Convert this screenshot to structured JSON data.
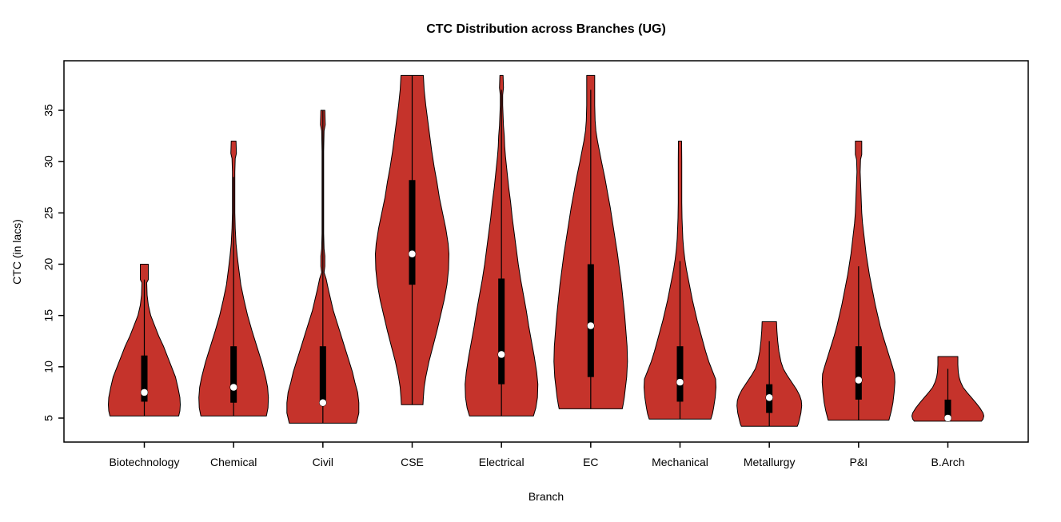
{
  "title": "CTC Distribution across Branches (UG)",
  "chart_data": {
    "type": "violin",
    "title": "CTC Distribution across Branches (UG)",
    "xlabel": "Branch",
    "ylabel": "CTC (in lacs)",
    "yticks": [
      5,
      10,
      15,
      20,
      25,
      30,
      35
    ],
    "ylim": [
      3.5,
      39.5
    ],
    "grid": false,
    "legend": "none",
    "categories": [
      "Biotechnology",
      "Chemical",
      "Civil",
      "CSE",
      "Electrical",
      "EC",
      "Mechanical",
      "Metallurgy",
      "P&I",
      "B.Arch"
    ],
    "series": [
      {
        "branch": "Biotechnology",
        "min": 5.2,
        "max": 20,
        "q1": 6.6,
        "q3": 11.1,
        "median": 7.5,
        "line": [
          5.2,
          18.5
        ],
        "profile": [
          [
            20,
            5
          ],
          [
            18.5,
            5
          ],
          [
            18.2,
            3
          ],
          [
            17,
            3.5
          ],
          [
            16,
            5
          ],
          [
            15,
            8
          ],
          [
            14,
            13
          ],
          [
            13,
            18
          ],
          [
            12,
            24
          ],
          [
            11,
            29
          ],
          [
            10,
            34
          ],
          [
            9,
            39
          ],
          [
            8,
            42
          ],
          [
            7,
            44.5
          ],
          [
            6.3,
            45
          ],
          [
            5.7,
            44.5
          ],
          [
            5.2,
            43
          ]
        ]
      },
      {
        "branch": "Chemical",
        "min": 5.2,
        "max": 32,
        "q1": 6.5,
        "q3": 12,
        "median": 8,
        "line": [
          5.2,
          28.5
        ],
        "profile": [
          [
            32,
            3
          ],
          [
            30.8,
            3.5
          ],
          [
            30.3,
            2
          ],
          [
            29,
            1.5
          ],
          [
            27,
            1.5
          ],
          [
            25,
            1.5
          ],
          [
            23.5,
            2
          ],
          [
            22,
            3
          ],
          [
            20.8,
            4.5
          ],
          [
            19.5,
            6.5
          ],
          [
            18,
            9
          ],
          [
            16.5,
            13
          ],
          [
            15,
            17.5
          ],
          [
            13.5,
            23
          ],
          [
            12,
            29
          ],
          [
            10.5,
            35
          ],
          [
            9,
            40
          ],
          [
            8,
            42.5
          ],
          [
            7,
            43.5
          ],
          [
            6,
            43
          ],
          [
            5.2,
            41
          ]
        ]
      },
      {
        "branch": "Civil",
        "min": 4.5,
        "max": 35,
        "q1": 6.3,
        "q3": 12,
        "median": 6.5,
        "line": [
          4.5,
          35
        ],
        "profile": [
          [
            35,
            2.5
          ],
          [
            33.6,
            3
          ],
          [
            33,
            1.5
          ],
          [
            31,
            1
          ],
          [
            29,
            1
          ],
          [
            27,
            1
          ],
          [
            25,
            1
          ],
          [
            23,
            1
          ],
          [
            21.5,
            1.5
          ],
          [
            20.8,
            2.5
          ],
          [
            19.8,
            2.5
          ],
          [
            19.2,
            1.5
          ],
          [
            18.6,
            4
          ],
          [
            17.5,
            7
          ],
          [
            16.5,
            10
          ],
          [
            15.5,
            13
          ],
          [
            14.5,
            17
          ],
          [
            13.5,
            21
          ],
          [
            12.5,
            25
          ],
          [
            11.5,
            29
          ],
          [
            10.5,
            33
          ],
          [
            9.5,
            37
          ],
          [
            8.5,
            40
          ],
          [
            7.5,
            43.5
          ],
          [
            6.5,
            45
          ],
          [
            5.5,
            45
          ],
          [
            4.5,
            42
          ]
        ]
      },
      {
        "branch": "CSE",
        "min": 6.3,
        "max": 38,
        "q1": 18,
        "q3": 28.2,
        "median": 21,
        "line": [
          6.3,
          38.4
        ],
        "profile": [
          [
            38.4,
            14
          ],
          [
            37,
            15
          ],
          [
            35.5,
            17
          ],
          [
            34,
            19.5
          ],
          [
            32.5,
            22
          ],
          [
            31,
            24.5
          ],
          [
            29.5,
            27.5
          ],
          [
            28,
            31
          ],
          [
            26.5,
            34
          ],
          [
            25,
            38
          ],
          [
            23.5,
            42
          ],
          [
            22,
            45
          ],
          [
            21,
            46
          ],
          [
            19.5,
            45.5
          ],
          [
            18,
            43.5
          ],
          [
            16.5,
            40
          ],
          [
            15,
            35.5
          ],
          [
            13.5,
            31
          ],
          [
            12,
            26
          ],
          [
            10.5,
            21
          ],
          [
            9,
            17
          ],
          [
            8,
            15
          ],
          [
            7,
            14
          ],
          [
            6.3,
            13.5
          ]
        ]
      },
      {
        "branch": "Electrical",
        "min": 5.2,
        "max": 38,
        "q1": 8.3,
        "q3": 18.6,
        "median": 11.2,
        "line": [
          5.2,
          37
        ],
        "profile": [
          [
            38.4,
            2
          ],
          [
            37.2,
            2.5
          ],
          [
            36.5,
            1.5
          ],
          [
            35.5,
            1.5
          ],
          [
            34.5,
            2
          ],
          [
            33.5,
            2.5
          ],
          [
            32.5,
            3.5
          ],
          [
            31.5,
            4
          ],
          [
            30.5,
            5
          ],
          [
            29,
            7
          ],
          [
            27.5,
            9
          ],
          [
            26,
            11.5
          ],
          [
            24.5,
            13.5
          ],
          [
            23,
            16
          ],
          [
            21.5,
            18.5
          ],
          [
            20,
            21
          ],
          [
            18.5,
            24
          ],
          [
            17,
            27.5
          ],
          [
            15.5,
            31
          ],
          [
            14,
            34
          ],
          [
            12.5,
            37.5
          ],
          [
            11,
            41
          ],
          [
            9.5,
            44
          ],
          [
            8.3,
            45.5
          ],
          [
            7,
            45
          ],
          [
            6,
            43
          ],
          [
            5.2,
            40
          ]
        ]
      },
      {
        "branch": "EC",
        "min": 5.9,
        "max": 38,
        "q1": 9,
        "q3": 20,
        "median": 14,
        "line": [
          5.9,
          37
        ],
        "profile": [
          [
            38.4,
            5
          ],
          [
            37,
            5
          ],
          [
            35.5,
            5
          ],
          [
            34,
            5.5
          ],
          [
            33,
            6.5
          ],
          [
            32,
            8.5
          ],
          [
            31,
            11
          ],
          [
            30,
            13.5
          ],
          [
            28.5,
            17.5
          ],
          [
            27,
            21
          ],
          [
            25.5,
            24.5
          ],
          [
            24,
            27.5
          ],
          [
            22.5,
            30.5
          ],
          [
            21,
            33.5
          ],
          [
            19.5,
            36
          ],
          [
            18,
            38.5
          ],
          [
            16.5,
            40.5
          ],
          [
            15,
            42.5
          ],
          [
            13.5,
            44
          ],
          [
            12,
            45.5
          ],
          [
            10.5,
            46
          ],
          [
            9,
            45
          ],
          [
            8,
            43.5
          ],
          [
            7,
            42
          ],
          [
            6.3,
            40.5
          ],
          [
            5.9,
            39.5
          ]
        ]
      },
      {
        "branch": "Mechanical",
        "min": 4.9,
        "max": 32,
        "q1": 6.6,
        "q3": 12,
        "median": 8.5,
        "line": [
          4.9,
          20.3
        ],
        "profile": [
          [
            32,
            2
          ],
          [
            30,
            2.2
          ],
          [
            28,
            2.2
          ],
          [
            26,
            2.2
          ],
          [
            24.5,
            2.5
          ],
          [
            23.5,
            3
          ],
          [
            22.5,
            3.5
          ],
          [
            21.5,
            4.5
          ],
          [
            20.5,
            6
          ],
          [
            19.5,
            8
          ],
          [
            18.5,
            10.5
          ],
          [
            17.5,
            13
          ],
          [
            16.5,
            15.5
          ],
          [
            15.5,
            18.5
          ],
          [
            14.5,
            21.5
          ],
          [
            13.5,
            25
          ],
          [
            12.5,
            28.5
          ],
          [
            11.5,
            32
          ],
          [
            10.5,
            36
          ],
          [
            9.5,
            41
          ],
          [
            8.8,
            44.5
          ],
          [
            8,
            45
          ],
          [
            7,
            44
          ],
          [
            6,
            42
          ],
          [
            5.4,
            40.5
          ],
          [
            4.9,
            38.5
          ]
        ]
      },
      {
        "branch": "Metallurgy",
        "min": 4.2,
        "max": 14.4,
        "q1": 5.5,
        "q3": 8.3,
        "median": 7,
        "line": [
          4.2,
          12.5
        ],
        "profile": [
          [
            14.4,
            9
          ],
          [
            13.5,
            9.5
          ],
          [
            12.5,
            10.5
          ],
          [
            11.5,
            12
          ],
          [
            10.5,
            14.5
          ],
          [
            9.8,
            17.5
          ],
          [
            9.2,
            22
          ],
          [
            8.5,
            28
          ],
          [
            7.8,
            34
          ],
          [
            7.2,
            38
          ],
          [
            6.7,
            40
          ],
          [
            6.2,
            40.5
          ],
          [
            5.5,
            39.5
          ],
          [
            5,
            38
          ],
          [
            4.5,
            36.5
          ],
          [
            4.2,
            35
          ]
        ]
      },
      {
        "branch": "P&I",
        "min": 4.8,
        "max": 32,
        "q1": 6.8,
        "q3": 12,
        "median": 8.7,
        "line": [
          4.8,
          19.8
        ],
        "profile": [
          [
            32,
            4
          ],
          [
            30.7,
            4
          ],
          [
            30.2,
            2.5
          ],
          [
            29,
            2
          ],
          [
            28,
            2.5
          ],
          [
            27,
            3
          ],
          [
            26,
            3.5
          ],
          [
            25,
            4
          ],
          [
            24,
            5
          ],
          [
            23,
            6.5
          ],
          [
            22,
            8
          ],
          [
            21,
            9.5
          ],
          [
            20,
            11.5
          ],
          [
            19,
            13.5
          ],
          [
            18,
            16
          ],
          [
            17,
            18.5
          ],
          [
            16,
            21
          ],
          [
            15,
            24
          ],
          [
            14,
            27
          ],
          [
            13,
            30.5
          ],
          [
            12,
            34.5
          ],
          [
            11,
            38.5
          ],
          [
            10,
            42.5
          ],
          [
            9.3,
            45
          ],
          [
            8.5,
            45.5
          ],
          [
            7.5,
            44.5
          ],
          [
            6.5,
            43
          ],
          [
            5.7,
            41
          ],
          [
            4.8,
            38
          ]
        ]
      },
      {
        "branch": "B.Arch",
        "min": 4.7,
        "max": 11,
        "q1": 5,
        "q3": 6.8,
        "median": 5,
        "line": [
          4.7,
          9.8
        ],
        "profile": [
          [
            11,
            12.5
          ],
          [
            10.2,
            12.5
          ],
          [
            9.5,
            13
          ],
          [
            9,
            14
          ],
          [
            8.5,
            16
          ],
          [
            8,
            19
          ],
          [
            7.5,
            24
          ],
          [
            7,
            29.5
          ],
          [
            6.5,
            35
          ],
          [
            6,
            40
          ],
          [
            5.5,
            44
          ],
          [
            5.2,
            45
          ],
          [
            4.9,
            44
          ],
          [
            4.7,
            42
          ]
        ]
      }
    ],
    "colors": {
      "violin_fill": "#C5332B",
      "violin_stroke": "#000000",
      "box": "#000000",
      "median_dot": "#FFFFFF",
      "frame": "#000000",
      "background": "#FFFFFF"
    }
  }
}
